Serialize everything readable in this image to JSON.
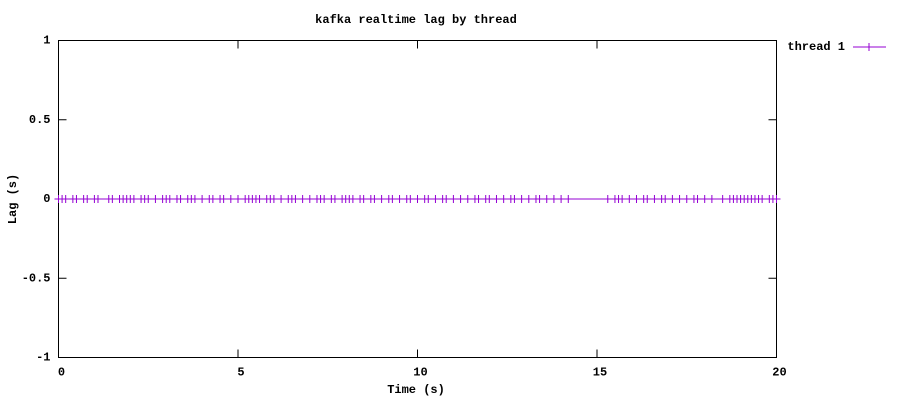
{
  "chart_data": {
    "type": "line",
    "title": "kafka realtime lag by thread",
    "xlabel": "Time (s)",
    "ylabel": "Lag (s)",
    "x": [
      0,
      0.1,
      0.2,
      0.4,
      0.5,
      0.7,
      0.8,
      1.0,
      1.1,
      1.4,
      1.5,
      1.7,
      1.8,
      1.9,
      2.0,
      2.1,
      2.3,
      2.4,
      2.5,
      2.7,
      2.9,
      3.0,
      3.1,
      3.3,
      3.4,
      3.6,
      3.7,
      3.8,
      4.0,
      4.2,
      4.3,
      4.5,
      4.6,
      4.8,
      5.0,
      5.2,
      5.3,
      5.4,
      5.5,
      5.6,
      5.8,
      5.9,
      6.0,
      6.2,
      6.4,
      6.5,
      6.6,
      6.8,
      7.0,
      7.2,
      7.3,
      7.4,
      7.6,
      7.7,
      7.9,
      8.0,
      8.1,
      8.2,
      8.4,
      8.5,
      8.7,
      8.8,
      9.0,
      9.2,
      9.3,
      9.5,
      9.7,
      9.8,
      10.0,
      10.2,
      10.3,
      10.5,
      10.7,
      10.8,
      11.0,
      11.2,
      11.4,
      11.6,
      11.7,
      11.9,
      12.0,
      12.2,
      12.4,
      12.6,
      12.7,
      12.9,
      13.1,
      13.3,
      13.4,
      13.6,
      13.8,
      14.0,
      14.2,
      15.3,
      15.5,
      15.6,
      15.7,
      15.9,
      16.1,
      16.3,
      16.4,
      16.6,
      16.8,
      16.9,
      17.1,
      17.3,
      17.5,
      17.7,
      17.8,
      18.0,
      18.2,
      18.5,
      18.7,
      18.8,
      18.9,
      19.0,
      19.1,
      19.2,
      19.3,
      19.4,
      19.5,
      19.6,
      19.8,
      19.9,
      20.0
    ],
    "series": [
      {
        "name": "thread 1",
        "color": "#9400d3",
        "values": [
          0,
          0,
          0,
          0,
          0,
          0,
          0,
          0,
          0,
          0,
          0,
          0,
          0,
          0,
          0,
          0,
          0,
          0,
          0,
          0,
          0,
          0,
          0,
          0,
          0,
          0,
          0,
          0,
          0,
          0,
          0,
          0,
          0,
          0,
          0,
          0,
          0,
          0,
          0,
          0,
          0,
          0,
          0,
          0,
          0,
          0,
          0,
          0,
          0,
          0,
          0,
          0,
          0,
          0,
          0,
          0,
          0,
          0,
          0,
          0,
          0,
          0,
          0,
          0,
          0,
          0,
          0,
          0,
          0,
          0,
          0,
          0,
          0,
          0,
          0,
          0,
          0,
          0,
          0,
          0,
          0,
          0,
          0,
          0,
          0,
          0,
          0,
          0,
          0,
          0,
          0,
          0,
          0,
          0,
          0,
          0,
          0,
          0,
          0,
          0,
          0,
          0,
          0,
          0,
          0,
          0,
          0,
          0,
          0,
          0,
          0,
          0,
          0,
          0,
          0,
          0,
          0,
          0,
          0,
          0,
          0,
          0,
          0,
          0,
          0
        ]
      }
    ],
    "xlim": [
      0,
      20
    ],
    "xticks": [
      0,
      5,
      10,
      15,
      20
    ],
    "ylim": [
      -1,
      1
    ],
    "yticks": [
      -1,
      -0.5,
      0,
      0.5,
      1
    ],
    "grid": false,
    "legend": "outside-top-right"
  }
}
